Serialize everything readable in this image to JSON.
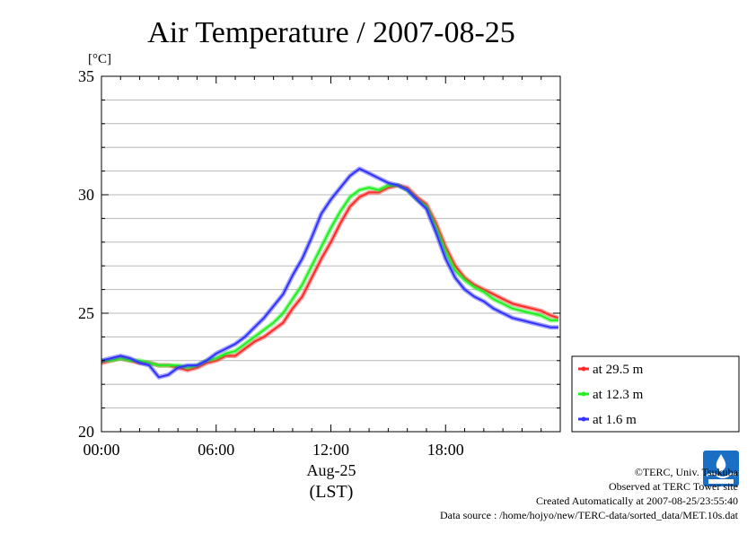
{
  "chart_data": {
    "type": "line",
    "title": "Air Temperature / 2007-08-25",
    "ylabel": "[°C]",
    "xlabel_date": "Aug-25",
    "xlabel_zone": "(LST)",
    "x_unit": "hour",
    "xlim": [
      0,
      24
    ],
    "ylim": [
      20,
      35
    ],
    "y_ticks": [
      20,
      25,
      30,
      35
    ],
    "y_tick_labels": [
      "20",
      "25",
      "30",
      "35"
    ],
    "x_ticks": [
      0,
      6,
      12,
      18
    ],
    "x_tick_labels": [
      "00:00",
      "06:00",
      "12:00",
      "18:00"
    ],
    "grid": true,
    "legend_position": "outside-right",
    "series": [
      {
        "name": "at 29.5 m",
        "color": "#ff2a2a",
        "x": [
          0,
          0.5,
          1,
          1.5,
          2,
          2.5,
          3,
          3.5,
          4,
          4.5,
          5,
          5.5,
          6,
          6.5,
          7,
          7.5,
          8,
          8.5,
          9,
          9.5,
          10,
          10.5,
          11,
          11.5,
          12,
          12.5,
          13,
          13.5,
          14,
          14.5,
          15,
          15.5,
          16,
          16.5,
          17,
          17.5,
          18,
          18.5,
          19,
          19.5,
          20,
          20.5,
          21,
          21.5,
          22,
          22.5,
          23,
          23.5,
          23.9
        ],
        "values": [
          22.9,
          23.0,
          23.1,
          23.0,
          22.9,
          22.9,
          22.8,
          22.8,
          22.7,
          22.6,
          22.7,
          22.9,
          23.0,
          23.2,
          23.2,
          23.5,
          23.8,
          24.0,
          24.3,
          24.6,
          25.2,
          25.7,
          26.5,
          27.3,
          28.0,
          28.8,
          29.5,
          29.9,
          30.1,
          30.1,
          30.3,
          30.4,
          30.3,
          29.9,
          29.6,
          28.8,
          27.8,
          27.0,
          26.5,
          26.2,
          26.0,
          25.8,
          25.6,
          25.4,
          25.3,
          25.2,
          25.1,
          24.9,
          24.8
        ]
      },
      {
        "name": "at 12.3 m",
        "color": "#22ee22",
        "x": [
          0,
          0.5,
          1,
          1.5,
          2,
          2.5,
          3,
          3.5,
          4,
          4.5,
          5,
          5.5,
          6,
          6.5,
          7,
          7.5,
          8,
          8.5,
          9,
          9.5,
          10,
          10.5,
          11,
          11.5,
          12,
          12.5,
          13,
          13.5,
          14,
          14.5,
          15,
          15.5,
          16,
          16.5,
          17,
          17.5,
          18,
          18.5,
          19,
          19.5,
          20,
          20.5,
          21,
          21.5,
          22,
          22.5,
          23,
          23.5,
          23.9
        ],
        "values": [
          23.0,
          23.0,
          23.1,
          23.0,
          23.0,
          22.9,
          22.8,
          22.8,
          22.8,
          22.7,
          22.8,
          23.0,
          23.1,
          23.3,
          23.4,
          23.7,
          24.0,
          24.3,
          24.6,
          25.0,
          25.6,
          26.2,
          27.0,
          27.8,
          28.6,
          29.3,
          29.9,
          30.2,
          30.3,
          30.2,
          30.4,
          30.4,
          30.2,
          29.8,
          29.5,
          28.6,
          27.6,
          26.8,
          26.4,
          26.1,
          25.9,
          25.6,
          25.4,
          25.2,
          25.1,
          25.0,
          24.9,
          24.7,
          24.7
        ]
      },
      {
        "name": "at 1.6 m",
        "color": "#3333ff",
        "x": [
          0,
          0.5,
          1,
          1.5,
          2,
          2.5,
          3,
          3.5,
          4,
          4.5,
          5,
          5.5,
          6,
          6.5,
          7,
          7.5,
          8,
          8.5,
          9,
          9.5,
          10,
          10.5,
          11,
          11.5,
          12,
          12.5,
          13,
          13.5,
          14,
          14.5,
          15,
          15.5,
          16,
          16.5,
          17,
          17.5,
          18,
          18.5,
          19,
          19.5,
          20,
          20.5,
          21,
          21.5,
          22,
          22.5,
          23,
          23.5,
          23.9
        ],
        "values": [
          23.0,
          23.1,
          23.2,
          23.1,
          22.9,
          22.8,
          22.3,
          22.4,
          22.7,
          22.8,
          22.8,
          23.0,
          23.3,
          23.5,
          23.7,
          24.0,
          24.4,
          24.8,
          25.3,
          25.8,
          26.6,
          27.3,
          28.2,
          29.2,
          29.8,
          30.3,
          30.8,
          31.1,
          30.9,
          30.7,
          30.5,
          30.4,
          30.2,
          29.8,
          29.4,
          28.4,
          27.3,
          26.5,
          26.0,
          25.7,
          25.5,
          25.2,
          25.0,
          24.8,
          24.7,
          24.6,
          24.5,
          24.4,
          24.4
        ]
      }
    ]
  },
  "footer": {
    "copyright": "©TERC, Univ. Tsukuba",
    "observed": "Observed at TERC Tower site",
    "created": "Created Automatically at 2007-08-25/23:55:40",
    "source": "Data source : /home/hojyo/new/TERC-data/sorted_data/MET.10s.dat"
  },
  "logo": {
    "name": "terc-logo-icon",
    "color": "#1a6fc4"
  }
}
